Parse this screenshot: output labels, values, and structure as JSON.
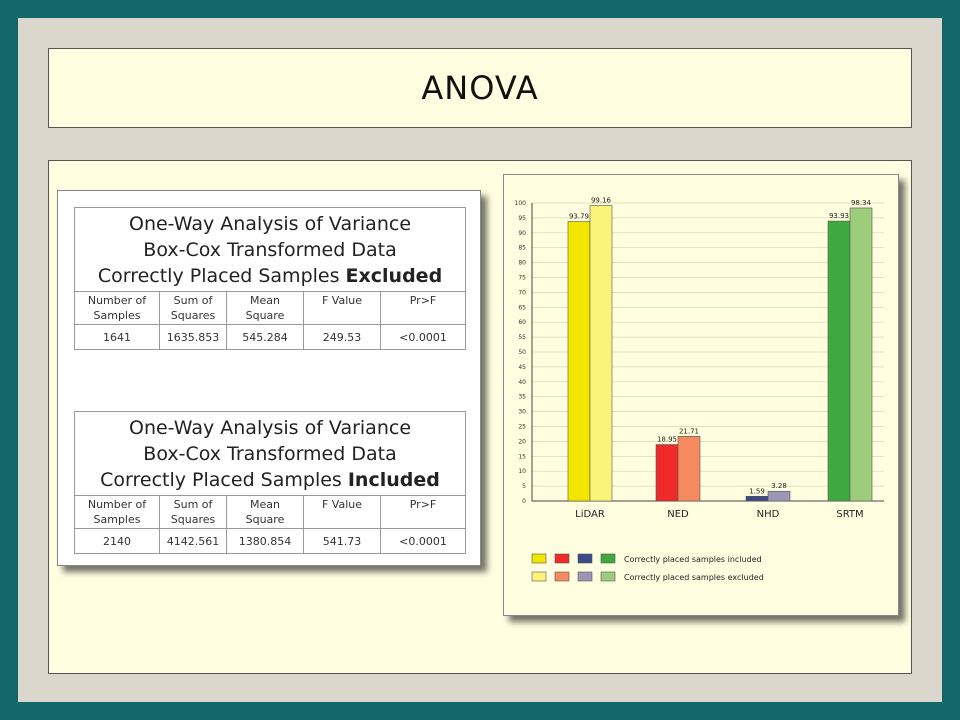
{
  "slide": {
    "title": "ANOVA"
  },
  "tables": [
    {
      "caption_line1": "One-Way Analysis of Variance",
      "caption_line2": "Box-Cox Transformed Data",
      "caption_line3_prefix": "Correctly Placed Samples ",
      "caption_line3_bold": "Excluded",
      "headers": [
        "Number of Samples",
        "Sum of Squares",
        "Mean Square",
        "F Value",
        "Pr>F"
      ],
      "values": [
        "1641",
        "1635.853",
        "545.284",
        "249.53",
        "<0.0001"
      ]
    },
    {
      "caption_line1": "One-Way Analysis of Variance",
      "caption_line2": "Box-Cox Transformed Data",
      "caption_line3_prefix": "Correctly Placed Samples ",
      "caption_line3_bold": "Included",
      "headers": [
        "Number of Samples",
        "Sum of Squares",
        "Mean Square",
        "F Value",
        "Pr>F"
      ],
      "values": [
        "2140",
        "4142.561",
        "1380.854",
        "541.73",
        "<0.0001"
      ]
    }
  ],
  "chart_data": {
    "type": "bar",
    "title": "",
    "xlabel": "",
    "ylabel": "",
    "ylim": [
      0,
      100
    ],
    "yticks": [
      "0",
      "5",
      "10",
      "15",
      "20",
      "25",
      "30",
      "35",
      "40",
      "45",
      "50",
      "55",
      "60",
      "65",
      "70",
      "75",
      "80",
      "85",
      "90",
      "95",
      "100"
    ],
    "grid": true,
    "categories": [
      "LiDAR",
      "NED",
      "NHD",
      "SRTM"
    ],
    "series": [
      {
        "name": "Correctly placed samples included",
        "values": [
          93.79,
          18.95,
          1.59,
          93.93
        ],
        "labels": [
          "93.79",
          "18.95",
          "1.59",
          "93.93"
        ],
        "colors": [
          "#f2e600",
          "#ee2a2a",
          "#3d4a86",
          "#3fa83f"
        ]
      },
      {
        "name": "Correctly placed samples excluded",
        "values": [
          99.16,
          21.71,
          3.28,
          98.34
        ],
        "labels": [
          "99.16",
          "21.71",
          "3.28",
          "98.34"
        ],
        "colors": [
          "#fbf47a",
          "#f58a5f",
          "#9b95b8",
          "#9dcc7a"
        ]
      }
    ],
    "legend_position": "bottom"
  }
}
